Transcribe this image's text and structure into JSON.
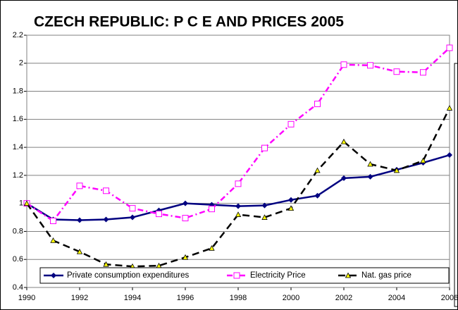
{
  "chart_data": {
    "type": "line",
    "title": "CZECH REPUBLIC: P C E AND PRICES 2005",
    "x": [
      1990,
      1991,
      1992,
      1993,
      1994,
      1995,
      1996,
      1997,
      1998,
      1999,
      2000,
      2001,
      2002,
      2003,
      2004,
      2005,
      2006
    ],
    "xlim": [
      1990,
      2006
    ],
    "xticks": [
      1990,
      1992,
      1994,
      1996,
      1998,
      2000,
      2002,
      2004,
      2006
    ],
    "ylim": [
      0.4,
      2.2
    ],
    "yticks": [
      0.4,
      0.6,
      0.8,
      1,
      1.2,
      1.4,
      1.6,
      1.8,
      2,
      2.2
    ],
    "grid": true,
    "legend": "bottom",
    "series": [
      {
        "name": "Private consumption expenditures",
        "color": "#000080",
        "values": [
          1.0,
          0.885,
          0.88,
          0.885,
          0.9,
          0.95,
          1.0,
          0.99,
          0.98,
          0.985,
          1.025,
          1.055,
          1.18,
          1.19,
          1.24,
          1.29,
          1.345
        ]
      },
      {
        "name": "Electricity Price",
        "color": "#ff00ff",
        "values": [
          1.0,
          0.875,
          1.125,
          1.09,
          0.965,
          0.925,
          0.895,
          0.96,
          1.14,
          1.395,
          1.565,
          1.71,
          1.99,
          1.985,
          1.94,
          1.935,
          2.11
        ]
      },
      {
        "name": "Nat. gas price",
        "color": "#000000",
        "values": [
          1.0,
          0.735,
          0.655,
          0.565,
          0.55,
          0.555,
          0.615,
          0.68,
          0.92,
          0.9,
          0.965,
          1.235,
          1.44,
          1.28,
          1.235,
          1.305,
          1.68
        ]
      }
    ]
  }
}
